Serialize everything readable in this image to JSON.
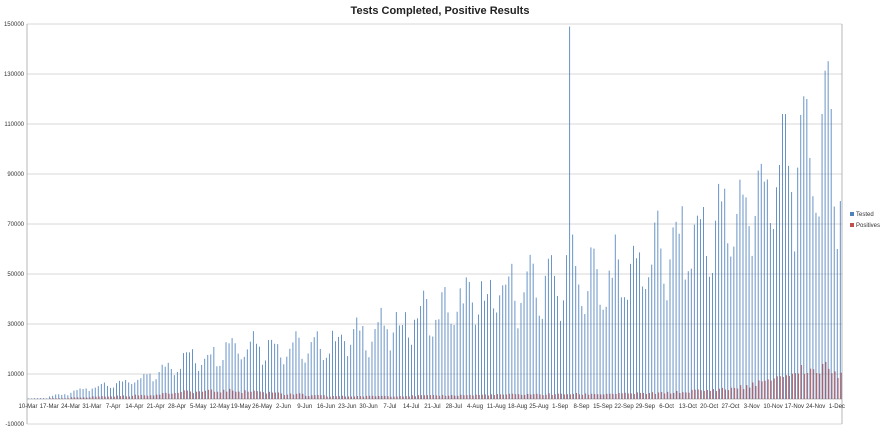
{
  "chart_data": {
    "type": "bar",
    "title": "Tests Completed, Positive Results",
    "xlabel": "",
    "ylabel": "",
    "ylim": [
      -10000,
      150000
    ],
    "yticks": [
      -10000,
      10000,
      30000,
      50000,
      70000,
      90000,
      110000,
      130000,
      150000
    ],
    "x_tick_labels": [
      "10-Mar",
      "17-Mar",
      "24-Mar",
      "31-Mar",
      "7-Apr",
      "14-Apr",
      "21-Apr",
      "28-Apr",
      "5-May",
      "12-May",
      "19-May",
      "26-May",
      "2-Jun",
      "9-Jun",
      "16-Jun",
      "23-Jun",
      "30-Jun",
      "7-Jul",
      "14-Jul",
      "21-Jul",
      "28-Jul",
      "4-Aug",
      "11-Aug",
      "18-Aug",
      "25-Aug",
      "1-Sep",
      "8-Sep",
      "15-Sep",
      "22-Sep",
      "29-Sep",
      "6-Oct",
      "13-Oct",
      "20-Oct",
      "27-Oct",
      "3-Nov",
      "10-Nov",
      "17-Nov",
      "24-Nov",
      "1-Dec"
    ],
    "x_tick_day_index": [
      0,
      7,
      14,
      21,
      28,
      35,
      42,
      49,
      56,
      63,
      70,
      77,
      84,
      91,
      98,
      105,
      112,
      119,
      126,
      133,
      140,
      147,
      154,
      161,
      168,
      175,
      182,
      189,
      196,
      203,
      210,
      217,
      224,
      231,
      238,
      245,
      252,
      259,
      266
    ],
    "grid": true,
    "legend_position": "right",
    "series": [
      {
        "name": "Tested",
        "color": "#4f81bd"
      },
      {
        "name": "Positives",
        "color": "#c0504d"
      }
    ],
    "weekly_avg_tested": [
      300,
      1500,
      3500,
      5500,
      6500,
      8000,
      12000,
      16000,
      17000,
      21000,
      22000,
      21000,
      20000,
      20000,
      23000,
      25000,
      27000,
      29000,
      33000,
      34000,
      38000,
      40000,
      43000,
      45000,
      44000,
      48000,
      47000,
      48000,
      52000,
      55000,
      60000,
      64000,
      68000,
      74000,
      82000,
      88000,
      95000,
      100000,
      90000,
      88000
    ],
    "weekly_avg_positives": [
      20,
      200,
      600,
      900,
      1100,
      1400,
      2000,
      2600,
      2800,
      3000,
      2800,
      2400,
      1700,
      1200,
      1000,
      1000,
      1100,
      1100,
      1200,
      1300,
      1400,
      1500,
      1600,
      1700,
      1700,
      1800,
      1800,
      1900,
      2000,
      2100,
      2400,
      3000,
      3500,
      4200,
      6000,
      8500,
      10500,
      11000,
      10000,
      9500
    ],
    "notable_points": [
      {
        "date": "4-Sep",
        "tested": 149000
      },
      {
        "date": "29-Nov",
        "tested": 116000
      },
      {
        "date": "21-Nov",
        "tested": 120000
      }
    ]
  }
}
